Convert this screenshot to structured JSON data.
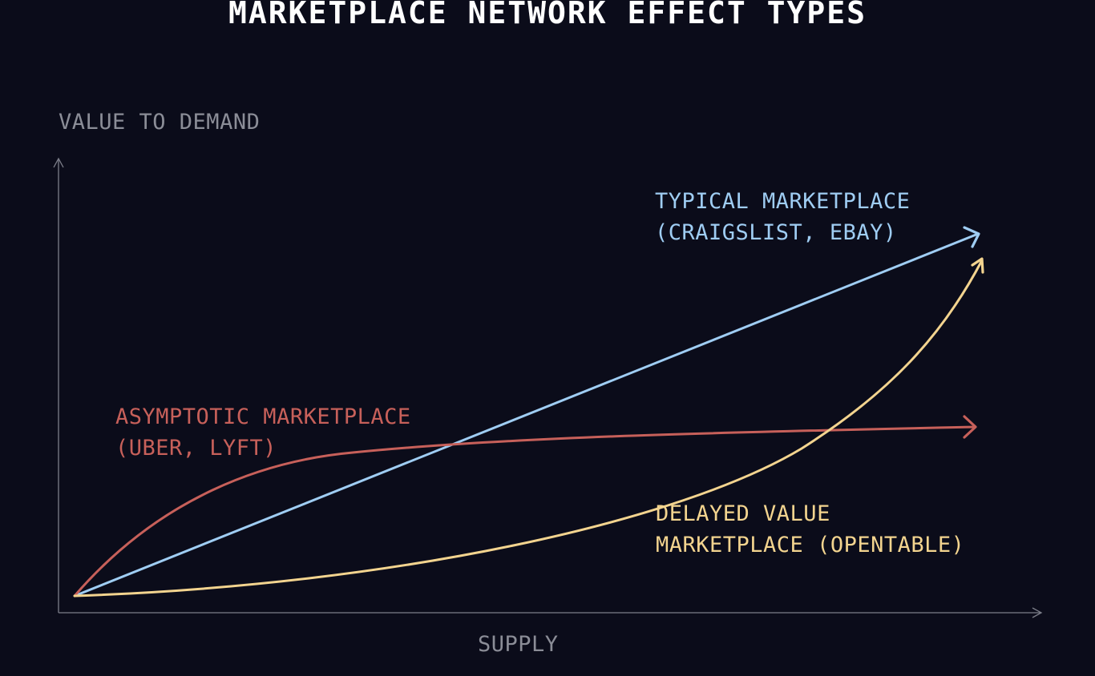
{
  "title": "MARKETPLACE NETWORK EFFECT TYPES",
  "axes": {
    "y_label": "VALUE TO DEMAND",
    "x_label": "SUPPLY"
  },
  "curves": {
    "typical": {
      "line1": "TYPICAL MARKETPLACE",
      "line2": "(CRAIGSLIST, EBAY)",
      "color": "#9fcdf3",
      "shape": "linear"
    },
    "asymptotic": {
      "line1": "ASYMPTOTIC MARKETPLACE",
      "line2": "(UBER, LYFT)",
      "color": "#c7605a",
      "shape": "asymptotic"
    },
    "delayed": {
      "line1": "DELAYED VALUE",
      "line2": "MARKETPLACE (OPENTABLE)",
      "color": "#f3d48f",
      "shape": "exponential"
    }
  }
}
